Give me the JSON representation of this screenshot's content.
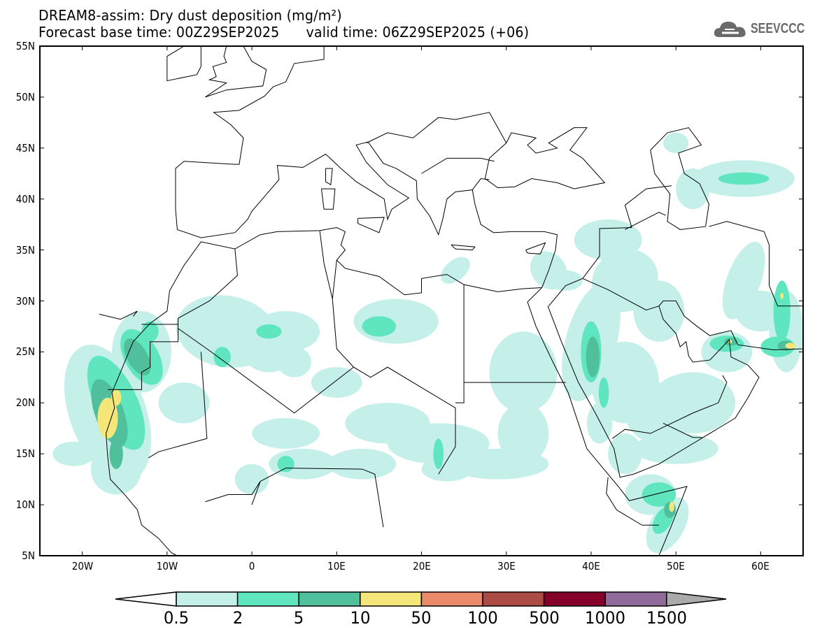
{
  "header": {
    "title": "DREAM8-assim: Dry dust deposition (mg/m²)",
    "base_time": "Forecast base time: 00Z29SEP2025",
    "valid_time": "valid time: 06Z29SEP2025 (+06)"
  },
  "logo": {
    "text": "SEEVCCC",
    "icon": "cloud-icon"
  },
  "map": {
    "lon_range": [
      -25,
      65
    ],
    "lat_range": [
      5,
      55
    ],
    "lat_labels": [
      {
        "value": 55,
        "label": "55N"
      },
      {
        "value": 50,
        "label": "50N"
      },
      {
        "value": 45,
        "label": "45N"
      },
      {
        "value": 40,
        "label": "40N"
      },
      {
        "value": 35,
        "label": "35N"
      },
      {
        "value": 30,
        "label": "30N"
      },
      {
        "value": 25,
        "label": "25N"
      },
      {
        "value": 20,
        "label": "20N"
      },
      {
        "value": 15,
        "label": "15N"
      },
      {
        "value": 10,
        "label": "10N"
      },
      {
        "value": 5,
        "label": "5N"
      }
    ],
    "lon_labels": [
      {
        "value": -20,
        "label": "20W"
      },
      {
        "value": -10,
        "label": "10W"
      },
      {
        "value": 0,
        "label": "0"
      },
      {
        "value": 10,
        "label": "10E"
      },
      {
        "value": 20,
        "label": "20E"
      },
      {
        "value": 30,
        "label": "30E"
      },
      {
        "value": 40,
        "label": "40E"
      },
      {
        "value": 50,
        "label": "50E"
      },
      {
        "value": 60,
        "label": "60E"
      }
    ]
  },
  "colorbar": {
    "labels": [
      "0.5",
      "2",
      "5",
      "10",
      "50",
      "100",
      "500",
      "1000",
      "1500"
    ],
    "colors": [
      "#c4f0e9",
      "#5fe6bf",
      "#50bf9b",
      "#f5e67a",
      "#eb8a6a",
      "#ab4b43",
      "#850029",
      "#8f6a9a"
    ],
    "under_color": "#ffffff",
    "over_color": "#aaaaaa"
  }
}
